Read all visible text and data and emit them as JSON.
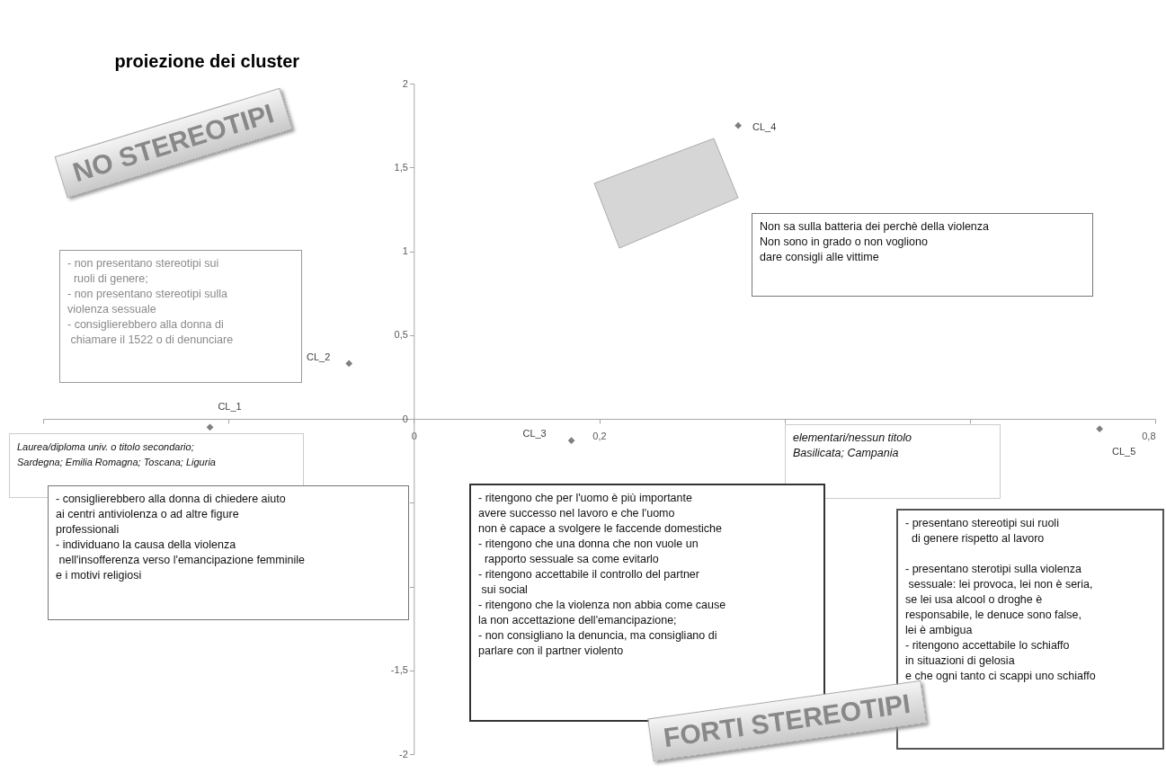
{
  "chart_data": {
    "type": "scatter",
    "title": "proiezione dei cluster",
    "x": [
      -0.22,
      -0.07,
      0.17,
      0.35,
      0.74
    ],
    "series": [
      {
        "color": "#7f7f7f",
        "values": [
          -0.05,
          0.33,
          -0.13,
          1.75,
          -0.06
        ]
      }
    ],
    "marker": "diamond",
    "xlim": [
      -0.4,
      0.8
    ],
    "xticks": [
      {
        "value": -0.4,
        "label": null
      },
      {
        "value": -0.2,
        "label": null
      },
      0,
      {
        "value": 0.2,
        "label": "0,2"
      },
      {
        "value": 0.4,
        "label": null
      },
      {
        "value": 0.6,
        "label": null
      },
      {
        "value": 0.8,
        "label": "0,8"
      }
    ],
    "ylim": [
      -2,
      2
    ],
    "yticks": [
      {
        "value": -2,
        "label": "-2"
      },
      {
        "value": -1.5,
        "label": "-1,5"
      },
      {
        "value": -1,
        "label": null
      },
      {
        "value": -0.5,
        "label": null
      },
      0,
      {
        "value": 0.5,
        "label": "0,5"
      },
      1,
      {
        "value": 1.5,
        "label": "1,5"
      },
      2
    ],
    "annotations": [
      {
        "text": "CL_1",
        "x": -0.22,
        "y": -0.05
      },
      {
        "text": "CL_2",
        "x": -0.07,
        "y": 0.33
      },
      {
        "text": "CL_3",
        "x": 0.17,
        "y": -0.13
      },
      {
        "text": "CL_4",
        "x": 0.35,
        "y": 1.75
      },
      {
        "text": "CL_5",
        "x": 0.74,
        "y": -0.06
      },
      "NO STEREOTIPI",
      "- non presentano stereotipi sui\n  ruoli di genere;\n- non presentano stereotipi sulla\nviolenza sessuale\n- consiglierebbero alla donna di\n chiamare il 1522 o di denunciare",
      "Non sa sulla batteria dei perchè della violenza\nNon sono in grado o non vogliono\ndare consigli alle vittime",
      "Laurea/diploma univ. o titolo secondario;\nSardegna; Emilia Romagna; Toscana; Liguria",
      "elementari/nessun titolo\nBasilicata; Campania",
      "- consiglierebbero alla donna di chiedere aiuto\nai centri antiviolenza o ad altre figure\nprofessionali\n- individuano la causa della violenza\n nell'insofferenza verso l'emancipazione femminile\ne i motivi religiosi",
      "- ritengono che per l'uomo è più importante\navere successo nel lavoro e che l'uomo\nnon è capace a svolgere le faccende domestiche\n- ritengono che una donna che non vuole un\n  rapporto sessuale sa come evitarlo\n- ritengono accettabile il controllo del partner\n sui social\n- ritengono che la violenza non abbia come cause\nla non accettazione dell'emancipazione;\n- non consigliano la denuncia, ma consigliano di\nparlare con il partner violento",
      "- presentano stereotipi sui ruoli\n  di genere rispetto al lavoro\n\n- presentano sterotipi sulla violenza\n sessuale: lei provoca, lei non è seria,\nse lei usa alcool o droghe è\nresponsabile, le denuce sono false,\nlei è ambigua\n- ritengono accettabile lo schiaffo\nin situazioni di gelosia\ne che ogni tanto ci scappi uno schiaffo",
      "FORTI STEREOTIPI"
    ]
  }
}
